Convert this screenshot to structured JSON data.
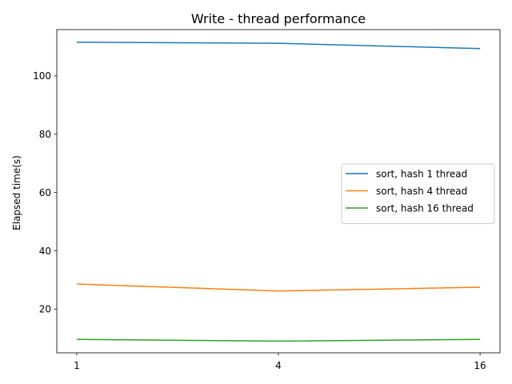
{
  "chart_data": {
    "type": "line",
    "title": "Write - thread performance",
    "xlabel": "",
    "ylabel": "Elapsed time(s)",
    "categories": [
      "1",
      "4",
      "16"
    ],
    "ylim": [
      5,
      115.9
    ],
    "yticks": [
      20,
      40,
      60,
      80,
      100
    ],
    "grid": false,
    "legend_position": "center-right",
    "series": [
      {
        "name": "sort, hash 1 thread",
        "color": "#1f77b4",
        "values": [
          111.6,
          111.2,
          109.4
        ]
      },
      {
        "name": "sort, hash 4 thread",
        "color": "#ff7f0e",
        "values": [
          28.6,
          26.2,
          27.5
        ]
      },
      {
        "name": "sort, hash 16 thread",
        "color": "#2ca02c",
        "values": [
          9.6,
          9.0,
          9.6
        ]
      }
    ]
  }
}
